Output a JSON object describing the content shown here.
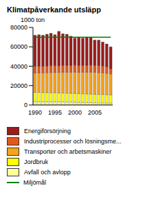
{
  "chart_data": {
    "type": "bar",
    "title": "Klimatpåverkande utsläpp",
    "subtitle": "1000 ton",
    "stacked": true,
    "grid": false,
    "categories": [
      "1990",
      null,
      null,
      null,
      null,
      "1995",
      null,
      null,
      null,
      null,
      "2000",
      null,
      null,
      null,
      null,
      "2005",
      null,
      null,
      null,
      null
    ],
    "ylim": [
      0,
      80000
    ],
    "yticks": [
      0,
      20000,
      40000,
      60000,
      80000
    ],
    "series": [
      {
        "name": "Energiförsörjning",
        "type": "bar",
        "color": "#9b1c1c",
        "values": [
          32000,
          32500,
          32100,
          32700,
          33400,
          31900,
          35500,
          32700,
          32000,
          30300,
          27800,
          29200,
          28300,
          29100,
          28800,
          26100,
          26300,
          24600,
          23500,
          22500
        ]
      },
      {
        "name": "Industriprocesser och lösningsme...",
        "type": "bar",
        "color": "#e2571c",
        "values": [
          7000,
          6800,
          6700,
          6900,
          7200,
          7000,
          6900,
          7000,
          7200,
          6900,
          7300,
          7100,
          6900,
          7100,
          7300,
          7200,
          7300,
          7200,
          6800,
          5500
        ]
      },
      {
        "name": "Transporter och arbetsmaskiner",
        "type": "bar",
        "color": "#f7a21b",
        "values": [
          20000,
          20200,
          20400,
          20600,
          20800,
          21000,
          21200,
          21400,
          21600,
          21800,
          22000,
          22000,
          22200,
          22400,
          22600,
          22600,
          22400,
          22400,
          22000,
          21500
        ]
      },
      {
        "name": "Jordbruk",
        "type": "bar",
        "color": "#ffff00",
        "values": [
          9500,
          9500,
          9400,
          9400,
          9300,
          9300,
          9200,
          9200,
          9100,
          9000,
          9000,
          8900,
          8900,
          8800,
          8800,
          8700,
          8700,
          8600,
          8600,
          8500
        ]
      },
      {
        "name": "Avfall och avlopp",
        "type": "bar",
        "color": "#ffff99",
        "values": [
          3500,
          3500,
          3400,
          3400,
          3300,
          3300,
          3200,
          3200,
          3100,
          3000,
          2900,
          2800,
          2700,
          2600,
          2500,
          2400,
          2300,
          2200,
          2100,
          2000
        ]
      },
      {
        "name": "Miljömål",
        "type": "line",
        "color": "#008000",
        "values": [
          70000,
          70000,
          70000,
          70000,
          70000,
          70000,
          70000,
          70000,
          70000,
          70000,
          70000,
          70000,
          70000,
          70000,
          70000,
          70000,
          70000,
          70000,
          70000,
          70000
        ]
      }
    ]
  }
}
